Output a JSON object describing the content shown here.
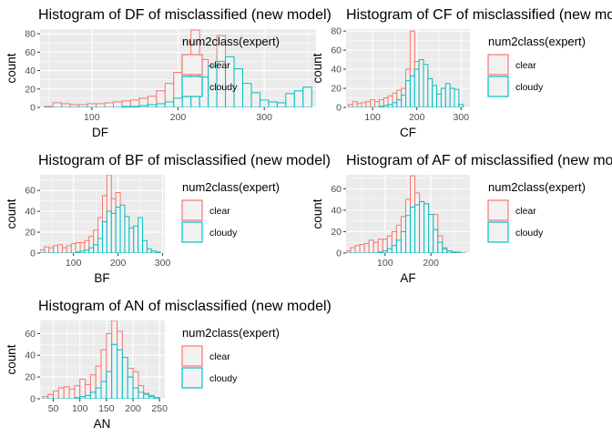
{
  "colors": {
    "clear": "#F8766D",
    "cloudy": "#00BFC4",
    "panel": "#EBEBEB",
    "grid": "#FFFFFF",
    "bar_fill": "#F2F2F2"
  },
  "chart_data": [
    {
      "type": "bar",
      "title": "Histogram of DF of misclassified (new model)",
      "xlabel": "DF",
      "ylabel": "count",
      "xlim": [
        40,
        360
      ],
      "ylim": [
        0,
        85
      ],
      "x_ticks": [
        100,
        200,
        300
      ],
      "y_ticks": [
        0,
        20,
        40,
        60,
        80
      ],
      "legend": {
        "title": "num2class(expert)",
        "position": "right",
        "entries": [
          "clear",
          "cloudy"
        ]
      },
      "grid": true,
      "x": [
        50,
        60,
        70,
        80,
        90,
        100,
        110,
        120,
        130,
        140,
        150,
        160,
        170,
        180,
        190,
        200,
        210,
        220,
        230,
        240,
        250,
        260,
        270,
        280,
        290,
        300,
        310,
        320,
        330,
        340,
        350
      ],
      "series": [
        {
          "name": "clear",
          "values": [
            1,
            5,
            4,
            3,
            3,
            4,
            4,
            5,
            6,
            7,
            8,
            10,
            12,
            18,
            26,
            38,
            55,
            84,
            52,
            28,
            78,
            50,
            20,
            9,
            5,
            4,
            2,
            1,
            0,
            0,
            0
          ]
        },
        {
          "name": "cloudy",
          "values": [
            0,
            0,
            0,
            0,
            0,
            0,
            0,
            0,
            0,
            1,
            1,
            2,
            3,
            4,
            6,
            10,
            18,
            28,
            33,
            45,
            50,
            55,
            42,
            26,
            16,
            8,
            6,
            5,
            15,
            18,
            22
          ]
        }
      ]
    },
    {
      "type": "bar",
      "title": "Histogram of CF of misclassified (new model)",
      "xlabel": "CF",
      "ylabel": "count",
      "xlim": [
        40,
        320
      ],
      "ylim": [
        0,
        82
      ],
      "x_ticks": [
        100,
        200,
        300
      ],
      "y_ticks": [
        0,
        20,
        40,
        60,
        80
      ],
      "legend": {
        "title": "num2class(expert)",
        "position": "right",
        "entries": [
          "clear",
          "cloudy"
        ]
      },
      "grid": true,
      "x": [
        50,
        60,
        70,
        80,
        90,
        100,
        110,
        120,
        130,
        140,
        150,
        160,
        170,
        180,
        190,
        200,
        210,
        220,
        230,
        240,
        250,
        260,
        270,
        280,
        290,
        300
      ],
      "series": [
        {
          "name": "clear",
          "values": [
            3,
            6,
            4,
            5,
            6,
            8,
            6,
            8,
            10,
            12,
            15,
            18,
            20,
            40,
            80,
            48,
            45,
            40,
            28,
            20,
            10,
            6,
            4,
            3,
            2,
            1
          ]
        },
        {
          "name": "cloudy",
          "values": [
            0,
            0,
            0,
            0,
            0,
            0,
            0,
            1,
            2,
            3,
            5,
            8,
            13,
            28,
            33,
            40,
            50,
            45,
            30,
            23,
            14,
            20,
            25,
            20,
            19,
            3
          ]
        }
      ]
    },
    {
      "type": "bar",
      "title": "Histogram of BF of misclassified (new model)",
      "xlabel": "BF",
      "ylabel": "count",
      "xlim": [
        25,
        305
      ],
      "ylim": [
        0,
        75
      ],
      "x_ticks": [
        100,
        200,
        300
      ],
      "y_ticks": [
        0,
        20,
        40,
        60
      ],
      "legend": {
        "title": "num2class(expert)",
        "position": "right",
        "entries": [
          "clear",
          "cloudy"
        ]
      },
      "grid": true,
      "x": [
        30,
        40,
        50,
        60,
        70,
        80,
        90,
        100,
        110,
        120,
        130,
        140,
        150,
        160,
        170,
        180,
        190,
        200,
        210,
        220,
        230,
        240,
        250,
        260,
        270,
        280,
        290
      ],
      "series": [
        {
          "name": "clear",
          "values": [
            3,
            6,
            5,
            7,
            8,
            5,
            7,
            9,
            10,
            10,
            12,
            16,
            22,
            34,
            55,
            75,
            52,
            58,
            40,
            18,
            8,
            5,
            3,
            2,
            1,
            1,
            0
          ]
        },
        {
          "name": "cloudy",
          "values": [
            0,
            0,
            0,
            0,
            0,
            0,
            0,
            0,
            1,
            2,
            3,
            5,
            8,
            14,
            30,
            40,
            38,
            44,
            46,
            35,
            24,
            26,
            34,
            12,
            4,
            2,
            1
          ]
        }
      ]
    },
    {
      "type": "bar",
      "title": "Histogram of AF of misclassified (new model)",
      "xlabel": "AF",
      "ylabel": "count",
      "xlim": [
        15,
        285
      ],
      "ylim": [
        0,
        73
      ],
      "x_ticks": [
        100,
        200
      ],
      "y_ticks": [
        0,
        20,
        40,
        60
      ],
      "legend": {
        "title": "num2class(expert)",
        "position": "right",
        "entries": [
          "clear",
          "cloudy"
        ]
      },
      "grid": true,
      "x": [
        20,
        30,
        40,
        50,
        60,
        70,
        80,
        90,
        100,
        110,
        120,
        130,
        140,
        150,
        160,
        170,
        180,
        190,
        200,
        210,
        220,
        230,
        240,
        250,
        260,
        270
      ],
      "series": [
        {
          "name": "clear",
          "values": [
            2,
            5,
            7,
            8,
            9,
            12,
            10,
            13,
            13,
            16,
            20,
            26,
            34,
            50,
            72,
            56,
            48,
            44,
            14,
            36,
            16,
            5,
            2,
            1,
            1,
            0
          ]
        },
        {
          "name": "cloudy",
          "values": [
            0,
            0,
            0,
            0,
            0,
            0,
            0,
            1,
            2,
            4,
            7,
            12,
            20,
            35,
            43,
            45,
            48,
            46,
            36,
            22,
            10,
            4,
            2,
            1,
            0,
            0
          ]
        }
      ]
    },
    {
      "type": "bar",
      "title": "Histogram of AN of misclassified (new model)",
      "xlabel": "AN",
      "ylabel": "count",
      "xlim": [
        25,
        260
      ],
      "ylim": [
        0,
        72
      ],
      "x_ticks": [
        50,
        100,
        150,
        200,
        250
      ],
      "y_ticks": [
        0,
        20,
        40,
        60
      ],
      "legend": {
        "title": "num2class(expert)",
        "position": "right",
        "entries": [
          "clear",
          "cloudy"
        ]
      },
      "grid": true,
      "x": [
        35,
        45,
        55,
        65,
        75,
        85,
        95,
        105,
        115,
        125,
        135,
        145,
        155,
        165,
        175,
        185,
        195,
        205,
        215,
        225,
        235,
        245
      ],
      "series": [
        {
          "name": "clear",
          "values": [
            2,
            4,
            7,
            10,
            11,
            9,
            12,
            18,
            13,
            22,
            30,
            45,
            60,
            72,
            62,
            35,
            28,
            25,
            12,
            5,
            3,
            1
          ]
        },
        {
          "name": "cloudy",
          "values": [
            0,
            0,
            0,
            0,
            0,
            0,
            1,
            2,
            3,
            6,
            10,
            16,
            25,
            50,
            45,
            38,
            20,
            10,
            6,
            4,
            2,
            1
          ]
        }
      ]
    }
  ]
}
